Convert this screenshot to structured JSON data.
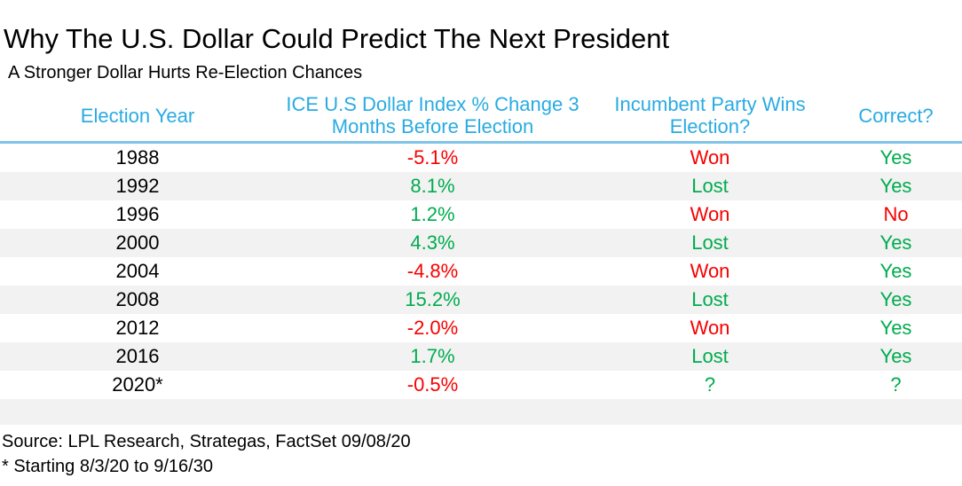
{
  "chart": {
    "title": "Why The U.S. Dollar Could Predict The Next President",
    "subtitle": "A Stronger Dollar Hurts Re-Election Chances"
  },
  "colors": {
    "header_blue": "#29ABE2",
    "divider_blue": "#7EC4E8",
    "stripe_gray": "#F2F2F2",
    "red": "#F70000",
    "green": "#00AC4E",
    "black": "#000000"
  },
  "table": {
    "headers": [
      "Election Year",
      "ICE U.S Dollar Index % Change 3 Months Before Election",
      "Incumbent Party Wins Election?",
      "Correct?"
    ],
    "rows": [
      {
        "year": "1988",
        "change": "-5.1%",
        "change_color": "red",
        "incumbent": "Won",
        "incumbent_color": "red",
        "correct": "Yes",
        "correct_color": "green"
      },
      {
        "year": "1992",
        "change": "8.1%",
        "change_color": "green",
        "incumbent": "Lost",
        "incumbent_color": "green",
        "correct": "Yes",
        "correct_color": "green"
      },
      {
        "year": "1996",
        "change": "1.2%",
        "change_color": "green",
        "incumbent": "Won",
        "incumbent_color": "red",
        "correct": "No",
        "correct_color": "red"
      },
      {
        "year": "2000",
        "change": "4.3%",
        "change_color": "green",
        "incumbent": "Lost",
        "incumbent_color": "green",
        "correct": "Yes",
        "correct_color": "green"
      },
      {
        "year": "2004",
        "change": "-4.8%",
        "change_color": "red",
        "incumbent": "Won",
        "incumbent_color": "red",
        "correct": "Yes",
        "correct_color": "green"
      },
      {
        "year": "2008",
        "change": "15.2%",
        "change_color": "green",
        "incumbent": "Lost",
        "incumbent_color": "green",
        "correct": "Yes",
        "correct_color": "green"
      },
      {
        "year": "2012",
        "change": "-2.0%",
        "change_color": "red",
        "incumbent": "Won",
        "incumbent_color": "red",
        "correct": "Yes",
        "correct_color": "green"
      },
      {
        "year": "2016",
        "change": "1.7%",
        "change_color": "green",
        "incumbent": "Lost",
        "incumbent_color": "green",
        "correct": "Yes",
        "correct_color": "green"
      },
      {
        "year": "2020*",
        "change": "-0.5%",
        "change_color": "red",
        "incumbent": "?",
        "incumbent_color": "green",
        "correct": "?",
        "correct_color": "green"
      }
    ]
  },
  "footer": {
    "source": "Source: LPL Research, Strategas, FactSet 09/08/20",
    "footnote": "* Starting 8/3/20 to 9/16/30"
  },
  "chart_data": {
    "type": "table",
    "title": "Why The U.S. Dollar Could Predict The Next President",
    "subtitle": "A Stronger Dollar Hurts Re-Election Chances",
    "columns": [
      "Election Year",
      "ICE U.S Dollar Index % Change 3 Months Before Election",
      "Incumbent Party Wins Election?",
      "Correct?"
    ],
    "rows": [
      [
        "1988",
        "-5.1%",
        "Won",
        "Yes"
      ],
      [
        "1992",
        "8.1%",
        "Lost",
        "Yes"
      ],
      [
        "1996",
        "1.2%",
        "Won",
        "No"
      ],
      [
        "2000",
        "4.3%",
        "Lost",
        "Yes"
      ],
      [
        "2004",
        "-4.8%",
        "Won",
        "Yes"
      ],
      [
        "2008",
        "15.2%",
        "Lost",
        "Yes"
      ],
      [
        "2012",
        "-2.0%",
        "Won",
        "Yes"
      ],
      [
        "2016",
        "1.7%",
        "Lost",
        "Yes"
      ],
      [
        "2020*",
        "-0.5%",
        "?",
        "?"
      ]
    ],
    "numeric": {
      "categories": [
        "1988",
        "1992",
        "1996",
        "2000",
        "2004",
        "2008",
        "2012",
        "2016",
        "2020*"
      ],
      "dollar_index_pct_change_3mo": [
        -5.1,
        8.1,
        1.2,
        4.3,
        -4.8,
        15.2,
        -2.0,
        1.7,
        -0.5
      ]
    },
    "source": "Source: LPL Research, Strategas, FactSet 09/08/20",
    "footnote": "* Starting 8/3/20 to 9/16/30"
  }
}
